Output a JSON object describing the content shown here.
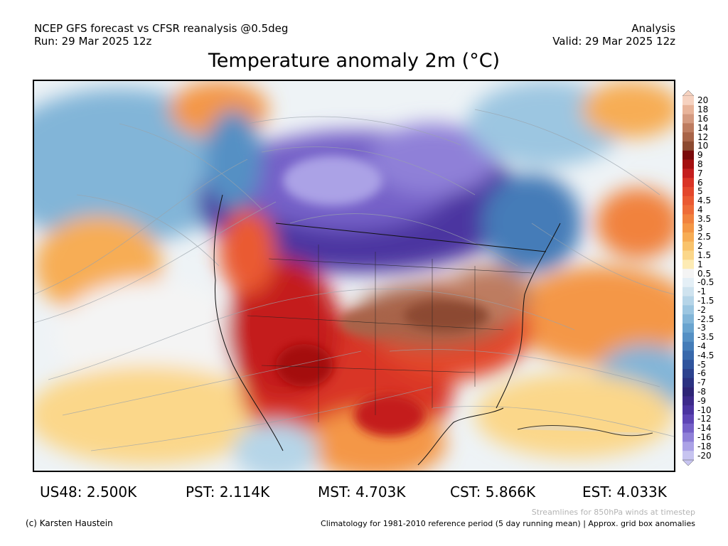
{
  "header": {
    "line1_left": "NCEP GFS forecast vs CFSR reanalysis @0.5deg",
    "line2_left": "Run: 29 Mar 2025 12z",
    "line1_right": "Analysis",
    "line2_right": "Valid: 29 Mar 2025 12z"
  },
  "title": "Temperature anomaly 2m (°C)",
  "colorbar": {
    "labels": [
      "20",
      "18",
      "16",
      "14",
      "12",
      "10",
      "9",
      "8",
      "7",
      "6",
      "5",
      "4.5",
      "4",
      "3.5",
      "3",
      "2.5",
      "2",
      "1.5",
      "1",
      "0.5",
      "-0.5",
      "-1",
      "-1.5",
      "-2",
      "-2.5",
      "-3",
      "-3.5",
      "-4",
      "-4.5",
      "-5",
      "-6",
      "-7",
      "-8",
      "-9",
      "-10",
      "-12",
      "-14",
      "-16",
      "-18",
      "-20"
    ],
    "colors": [
      "#f6d2c0",
      "#e8b49a",
      "#d49a80",
      "#bd7c60",
      "#a86448",
      "#8c4a30",
      "#7a0a0a",
      "#a40f0f",
      "#c41e1e",
      "#d93426",
      "#e3472c",
      "#ea5a32",
      "#ee6c38",
      "#f1823e",
      "#f49746",
      "#f7ad55",
      "#f9c36c",
      "#fbd78a",
      "#fdebb4",
      "#f4f4f4",
      "#e4eff6",
      "#cfe3ef",
      "#b6d5e8",
      "#9cc6e1",
      "#82b5d8",
      "#6aa4cf",
      "#5590c4",
      "#447cb8",
      "#3868ab",
      "#2f549d",
      "#2c428e",
      "#2b3281",
      "#2e2576",
      "#3d2a8a",
      "#4b34a0",
      "#5e45b5",
      "#7560c8",
      "#8f80d8",
      "#aba2e6",
      "#c7c4f0"
    ]
  },
  "stats": [
    {
      "label": "US48: 2.500K"
    },
    {
      "label": "PST: 2.114K"
    },
    {
      "label": "MST: 4.703K"
    },
    {
      "label": "CST: 5.866K"
    },
    {
      "label": "EST: 4.033K"
    }
  ],
  "footer": {
    "credit": "(c) Karsten Haustein",
    "streamlines_note": "Streamlines for 850hPa winds at timestep",
    "climatology_note": "Climatology for 1981-2010 reference period (5 day running mean) | Approx. grid box anomalies"
  }
}
